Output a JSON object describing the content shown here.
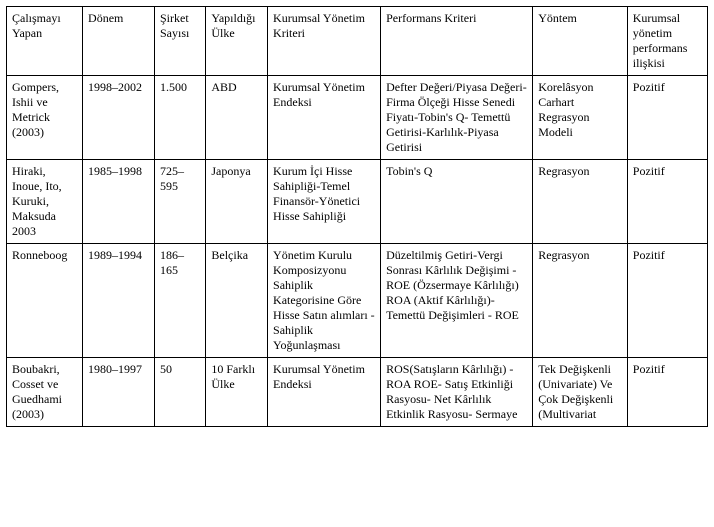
{
  "table": {
    "columns": [
      "Çalışmayı Yapan",
      "Dönem",
      "Şirket Sayısı",
      "Yapıldığı Ülke",
      "Kurumsal Yönetim Kriteri",
      "Performans Kriteri",
      "Yöntem",
      "Kurumsal yönetim performans ilişkisi"
    ],
    "rows": [
      {
        "author": "Gompers, Ishii ve Metrick (2003)",
        "period": "1998–2002",
        "count": "1.500",
        "country": "ABD",
        "gov_criteria": "Kurumsal Yönetim Endeksi",
        "perf_criteria": "Defter Değeri/Piyasa Değeri-Firma Ölçeği Hisse\nSenedi Fiyatı-Tobin's Q-\nTemettü Getirisi-Karlılık-Piyasa Getirisi",
        "method": "Korelâsyon Carhart Regrasyon Modeli",
        "relation": "Pozitif"
      },
      {
        "author": "Hiraki, Inoue, Ito, Kuruki, Maksuda 2003",
        "period": "1985–1998",
        "count": "725–595",
        "country": "Japonya",
        "gov_criteria": "Kurum İçi Hisse Sahipliği-Temel Finansör-Yönetici Hisse Sahipliği",
        "perf_criteria": "Tobin's Q",
        "method": "Regrasyon",
        "relation": "Pozitif"
      },
      {
        "author": "Ronneboog",
        "period": "1989–1994",
        "count": "186–165",
        "country": "Belçika",
        "gov_criteria": "Yönetim Kurulu Komposizyonu Sahiplik Kategorisine Göre Hisse\nSatın alımları - Sahiplik Yoğunlaşması",
        "perf_criteria": "Düzeltilmiş Getiri-Vergi\nSonrası Kârlılık Değişimi\n-ROE (Özsermaye Kârlılığı)\nROA (Aktif Kârlılığı)-\nTemettü Değişimleri - ROE",
        "method": "Regrasyon",
        "relation": "Pozitif"
      },
      {
        "author": "Boubakri, Cosset ve Guedhami (2003)",
        "period": "1980–1997",
        "count": "50",
        "country": "10 Farklı Ülke",
        "gov_criteria": "Kurumsal Yönetim Endeksi",
        "perf_criteria": "ROS(Satışların Kârlılığı) - ROA ROE- Satış Etkinliği Rasyosu- Net Kârlılık Etkinlik Rasyosu- Sermaye",
        "method": "Tek Değişkenli (Univariate) Ve Çok Değişkenli (Multivariat",
        "relation": "Pozitif"
      }
    ],
    "border_color": "#000000",
    "background_color": "#ffffff",
    "font_family": "Times New Roman",
    "font_size_pt": 9
  }
}
